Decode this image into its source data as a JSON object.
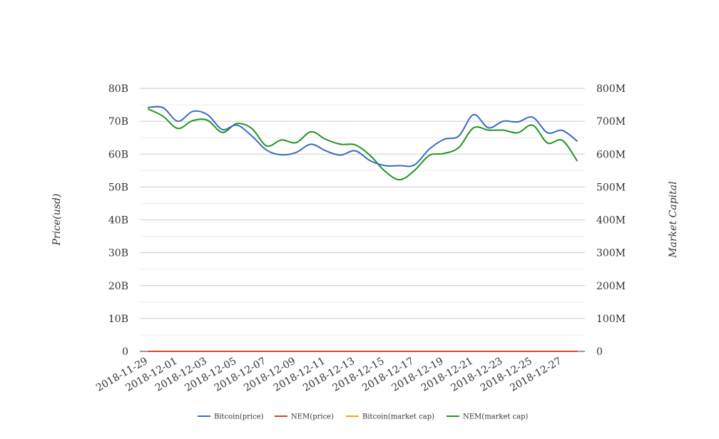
{
  "chart_data": {
    "type": "line",
    "x": [
      "2018-11-29",
      "2018-11-30",
      "2018-12-01",
      "2018-12-02",
      "2018-12-03",
      "2018-12-04",
      "2018-12-05",
      "2018-12-06",
      "2018-12-07",
      "2018-12-08",
      "2018-12-09",
      "2018-12-10",
      "2018-12-11",
      "2018-12-12",
      "2018-12-13",
      "2018-12-14",
      "2018-12-15",
      "2018-12-16",
      "2018-12-17",
      "2018-12-18",
      "2018-12-19",
      "2018-12-20",
      "2018-12-21",
      "2018-12-22",
      "2018-12-23",
      "2018-12-24",
      "2018-12-25",
      "2018-12-26",
      "2018-12-27",
      "2018-12-28"
    ],
    "x_tick_labels": [
      "2018-11-29",
      "2018-12-01",
      "2018-12-03",
      "2018-12-05",
      "2018-12-07",
      "2018-12-09",
      "2018-12-11",
      "2018-12-13",
      "2018-12-15",
      "2018-12-17",
      "2018-12-19",
      "2018-12-21",
      "2018-12-23",
      "2018-12-25",
      "2018-12-27"
    ],
    "ylabel": "Price(usd)",
    "y2label": "Market Capital",
    "ylim": [
      0,
      80000000000
    ],
    "y2lim": [
      0,
      800000000
    ],
    "y_tick_labels": [
      "0",
      "10B",
      "20B",
      "30B",
      "40B",
      "50B",
      "60B",
      "70B",
      "80B"
    ],
    "y2_tick_labels": [
      "0",
      "100M",
      "200M",
      "300M",
      "400M",
      "500M",
      "600M",
      "700M",
      "800M"
    ],
    "grid": true,
    "legend_position": "bottom",
    "series": [
      {
        "name": "Bitcoin(price)",
        "color": "#3a6bbf",
        "axis": "left",
        "values": [
          74200000000,
          74100000000,
          70000000000,
          73000000000,
          72000000000,
          67500000000,
          68800000000,
          65500000000,
          61200000000,
          59800000000,
          60500000000,
          63000000000,
          61000000000,
          59700000000,
          61000000000,
          58000000000,
          56500000000,
          56500000000,
          56700000000,
          61500000000,
          64500000000,
          65500000000,
          72000000000,
          68000000000,
          70000000000,
          69800000000,
          71200000000,
          66500000000,
          67200000000,
          64000000000
        ]
      },
      {
        "name": "NEM(price)",
        "color": "#d1461f",
        "axis": "left",
        "values": [
          0,
          0,
          0,
          0,
          0,
          0,
          0,
          0,
          0,
          0,
          0,
          0,
          0,
          0,
          0,
          0,
          0,
          0,
          0,
          0,
          0,
          0,
          0,
          0,
          0,
          0,
          0,
          0,
          0,
          0
        ]
      },
      {
        "name": "Bitcoin(market cap)",
        "color": "#e8a90c",
        "axis": "left",
        "values": [
          0,
          0,
          0,
          0,
          0,
          0,
          0,
          0,
          0,
          0,
          0,
          0,
          0,
          0,
          0,
          0,
          0,
          0,
          0,
          0,
          0,
          0,
          0,
          0,
          0,
          0,
          0,
          0,
          0,
          0
        ]
      },
      {
        "name": "NEM(market cap)",
        "color": "#1f9620",
        "axis": "right",
        "values": [
          737000000,
          715000000,
          678000000,
          702000000,
          703000000,
          666000000,
          693000000,
          678000000,
          625000000,
          643000000,
          635000000,
          668000000,
          645000000,
          630000000,
          628000000,
          596000000,
          548000000,
          522000000,
          550000000,
          596000000,
          602000000,
          620000000,
          680000000,
          673000000,
          673000000,
          665000000,
          688000000,
          634000000,
          642000000,
          580000000
        ]
      }
    ]
  }
}
